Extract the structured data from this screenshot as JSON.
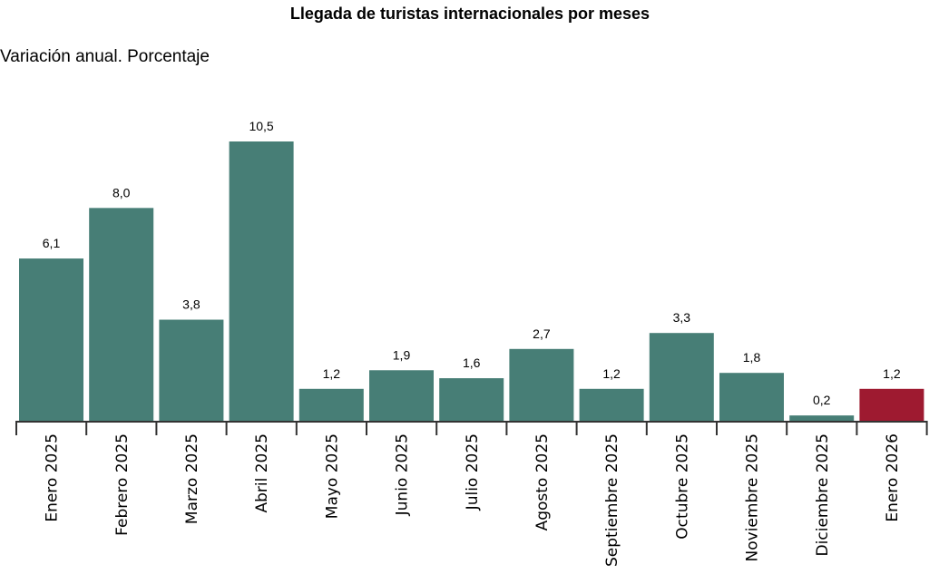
{
  "chart_data": {
    "type": "bar",
    "title": "Llegada de turistas internacionales por meses",
    "subtitle": "Variación anual. Porcentaje",
    "categories": [
      "Enero 2025",
      "Febrero 2025",
      "Marzo 2025",
      "Abril 2025",
      "Mayo 2025",
      "Junio 2025",
      "Julio 2025",
      "Agosto 2025",
      "Septiembre 2025",
      "Octubre 2025",
      "Noviembre 2025",
      "Diciembre 2025",
      "Enero 2026"
    ],
    "values": [
      6.1,
      8.0,
      3.8,
      10.5,
      1.2,
      1.9,
      1.6,
      2.7,
      1.2,
      3.3,
      1.8,
      0.2,
      1.2
    ],
    "data_labels": [
      "6,1",
      "8,0",
      "3,8",
      "10,5",
      "1,2",
      "1,9",
      "1,6",
      "2,7",
      "1,2",
      "3,3",
      "1,8",
      "0,2",
      "1,2"
    ],
    "xlabel": "",
    "ylabel": "",
    "ylim": [
      0,
      10.5
    ],
    "grid": false,
    "colors": {
      "default": "#477e76",
      "highlight": "#9e1a30",
      "highlight_index": 12
    }
  }
}
